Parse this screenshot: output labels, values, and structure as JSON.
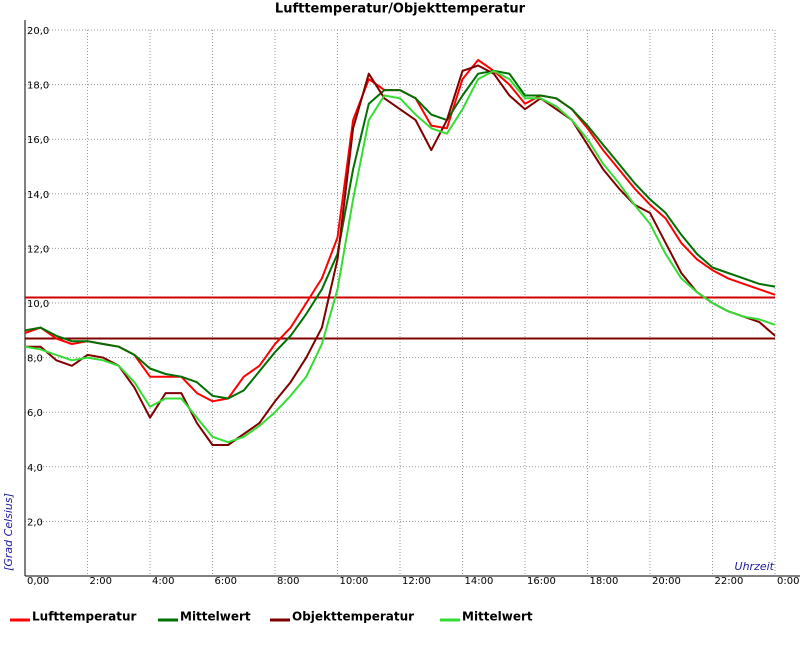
{
  "chart_data": {
    "type": "line",
    "title": "Lufttemperatur/Objekttemperatur",
    "y_label": "[Grad Celsius]",
    "x_label": "Uhrzeit",
    "grid": true,
    "xlim": [
      0,
      24
    ],
    "ylim": [
      0,
      20
    ],
    "xticks": [
      {
        "value": 0,
        "label": "0,00"
      },
      {
        "value": 2,
        "label": "2:00"
      },
      {
        "value": 4,
        "label": "4:00"
      },
      {
        "value": 6,
        "label": "6:00"
      },
      {
        "value": 8,
        "label": "8:00"
      },
      {
        "value": 10,
        "label": "10:00"
      },
      {
        "value": 12,
        "label": "12:00"
      },
      {
        "value": 14,
        "label": "14:00"
      },
      {
        "value": 16,
        "label": "16:00"
      },
      {
        "value": 18,
        "label": "18:00"
      },
      {
        "value": 20,
        "label": "20:00"
      },
      {
        "value": 22,
        "label": "22:00"
      },
      {
        "value": 24,
        "label": "0:00"
      }
    ],
    "yticks": [
      {
        "value": 2,
        "label": "2,0"
      },
      {
        "value": 4,
        "label": "4,0"
      },
      {
        "value": 6,
        "label": "6,0"
      },
      {
        "value": 8,
        "label": "8,0"
      },
      {
        "value": 10,
        "label": "10,0"
      },
      {
        "value": 12,
        "label": "12,0"
      },
      {
        "value": 14,
        "label": "14,0"
      },
      {
        "value": 16,
        "label": "16,0"
      },
      {
        "value": 18,
        "label": "18,0"
      },
      {
        "value": 20,
        "label": "20,0"
      }
    ],
    "x": [
      0,
      0.5,
      1,
      1.5,
      2,
      2.5,
      3,
      3.5,
      4,
      4.5,
      5,
      5.5,
      6,
      6.5,
      7,
      7.5,
      8,
      8.5,
      9,
      9.5,
      10,
      10.5,
      11,
      11.5,
      12,
      12.5,
      13,
      13.5,
      14,
      14.5,
      15,
      15.5,
      16,
      16.5,
      17,
      17.5,
      18,
      18.5,
      19,
      19.5,
      20,
      20.5,
      21,
      21.5,
      22,
      22.5,
      23,
      23.5,
      24
    ],
    "series": [
      {
        "name": "Lufttemperatur",
        "color": "#ff0000",
        "values": [
          8.9,
          9.1,
          8.7,
          8.5,
          8.6,
          8.5,
          8.4,
          8.1,
          7.3,
          7.3,
          7.3,
          6.7,
          6.4,
          6.5,
          7.3,
          7.7,
          8.5,
          9.1,
          10.0,
          10.9,
          12.4,
          16.7,
          18.2,
          17.8,
          17.8,
          17.5,
          16.5,
          16.4,
          18.2,
          18.9,
          18.5,
          18.0,
          17.3,
          17.6,
          17.5,
          17.1,
          16.4,
          15.6,
          14.9,
          14.2,
          13.6,
          13.1,
          12.2,
          11.6,
          11.2,
          10.9,
          10.7,
          10.5,
          10.3
        ]
      },
      {
        "name": "Mittelwert",
        "color": "#007000",
        "values": [
          9.0,
          9.1,
          8.8,
          8.6,
          8.6,
          8.5,
          8.4,
          8.1,
          7.6,
          7.4,
          7.3,
          7.1,
          6.6,
          6.5,
          6.8,
          7.5,
          8.2,
          8.8,
          9.6,
          10.5,
          11.8,
          14.9,
          17.3,
          17.8,
          17.8,
          17.5,
          16.9,
          16.7,
          17.6,
          18.4,
          18.5,
          18.4,
          17.6,
          17.6,
          17.5,
          17.1,
          16.5,
          15.8,
          15.1,
          14.4,
          13.8,
          13.3,
          12.5,
          11.8,
          11.3,
          11.1,
          10.9,
          10.7,
          10.6
        ]
      },
      {
        "name": "Objekttemperatur",
        "color": "#800000",
        "values": [
          8.4,
          8.4,
          7.9,
          7.7,
          8.1,
          8.0,
          7.7,
          6.9,
          5.8,
          6.7,
          6.7,
          5.6,
          4.8,
          4.8,
          5.2,
          5.6,
          6.4,
          7.1,
          8.0,
          9.1,
          11.6,
          16.4,
          18.4,
          17.5,
          17.1,
          16.7,
          15.6,
          16.7,
          18.5,
          18.7,
          18.4,
          17.6,
          17.1,
          17.5,
          17.1,
          16.7,
          15.8,
          14.9,
          14.2,
          13.6,
          13.3,
          12.2,
          11.1,
          10.4,
          10.0,
          9.7,
          9.5,
          9.3,
          8.8
        ]
      },
      {
        "name": "Mittelwert",
        "color": "#33dd33",
        "values": [
          8.4,
          8.3,
          8.1,
          7.9,
          8.0,
          7.9,
          7.7,
          7.1,
          6.2,
          6.5,
          6.5,
          5.8,
          5.1,
          4.9,
          5.1,
          5.5,
          6.0,
          6.6,
          7.3,
          8.5,
          10.5,
          13.8,
          16.7,
          17.6,
          17.5,
          16.9,
          16.4,
          16.2,
          17.1,
          18.2,
          18.5,
          18.2,
          17.5,
          17.5,
          17.2,
          16.7,
          16.0,
          15.1,
          14.4,
          13.6,
          12.9,
          11.8,
          10.9,
          10.4,
          10.0,
          9.7,
          9.5,
          9.4,
          9.2
        ]
      }
    ],
    "reference_lines": [
      {
        "value": 10.2,
        "color": "#cc0000"
      },
      {
        "value": 8.7,
        "color": "#800000"
      }
    ]
  }
}
